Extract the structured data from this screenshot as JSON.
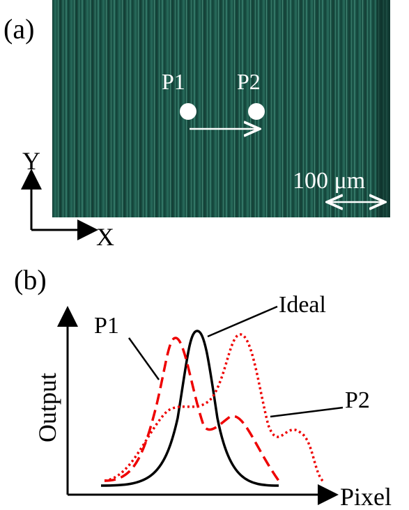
{
  "panel_a": {
    "label": "(a)",
    "points": [
      "P1",
      "P2"
    ],
    "axes": {
      "y": "Y",
      "x": "X"
    },
    "scale_bar": "100 μm"
  },
  "panel_b": {
    "label": "(b)",
    "y_axis": "Output",
    "x_axis": "Pixel",
    "curve_labels": {
      "p1": "P1",
      "ideal": "Ideal",
      "p2": "P2"
    }
  }
}
